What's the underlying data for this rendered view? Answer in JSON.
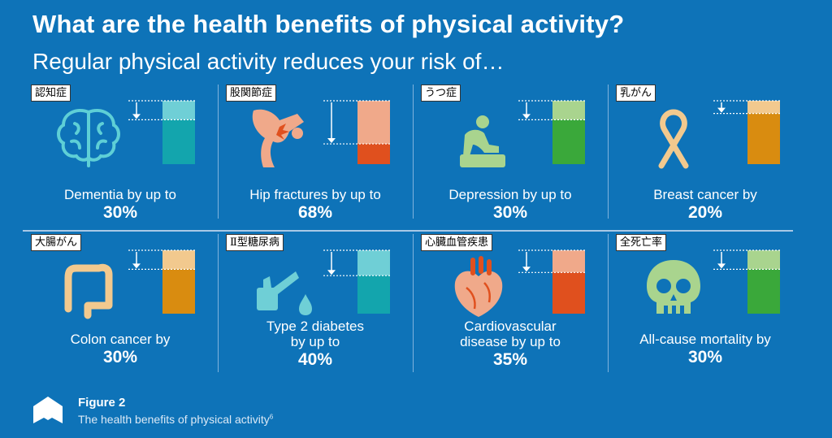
{
  "header": {
    "title": "What are the health benefits of physical activity?",
    "subtitle": "Regular physical activity reduces your risk of…"
  },
  "figure": {
    "label": "Figure 2",
    "caption": "The health benefits of physical activity",
    "reference": "6"
  },
  "colors": {
    "background": "#0e73b8",
    "dementia": [
      "#6fcfd6",
      "#13a5ad"
    ],
    "hip": [
      "#f0a98a",
      "#e0501e"
    ],
    "depression": [
      "#a9d48e",
      "#3aa83a"
    ],
    "breast": [
      "#f2c98e",
      "#d98c10"
    ],
    "colon": [
      "#f2c98e",
      "#d98c10"
    ],
    "diabetes": [
      "#6fcfd6",
      "#13a5ad"
    ],
    "cardio": [
      "#f0a98a",
      "#e0501e"
    ],
    "mortality": [
      "#a9d48e",
      "#3aa83a"
    ]
  },
  "chart_data": {
    "type": "bar",
    "categories": [
      "Dementia",
      "Hip fractures",
      "Depression",
      "Breast cancer",
      "Colon cancer",
      "Type 2 diabetes",
      "Cardiovascular disease",
      "All-cause mortality"
    ],
    "values": [
      30,
      68,
      30,
      20,
      30,
      40,
      35,
      30
    ],
    "unit": "%"
  },
  "cells": [
    {
      "id": "dementia",
      "jp": "認知症",
      "icon": "brain-icon",
      "caption_lines": [
        "Dementia by up to"
      ],
      "percent": "30%"
    },
    {
      "id": "hip",
      "jp": "股関節症",
      "icon": "hip-joint-icon",
      "caption_lines": [
        "Hip fractures by up to"
      ],
      "percent": "68%"
    },
    {
      "id": "depression",
      "jp": "うつ症",
      "icon": "sitting-person-icon",
      "caption_lines": [
        "Depression by up to"
      ],
      "percent": "30%"
    },
    {
      "id": "breast",
      "jp": "乳がん",
      "icon": "ribbon-icon",
      "caption_lines": [
        "Breast cancer by"
      ],
      "percent": "20%"
    },
    {
      "id": "colon",
      "jp": "大腸がん",
      "icon": "colon-icon",
      "caption_lines": [
        "Colon cancer by"
      ],
      "percent": "30%"
    },
    {
      "id": "diabetes",
      "jp": "Ⅱ型糖尿病",
      "icon": "glucose-test-icon",
      "caption_lines": [
        "Type 2 diabetes",
        "by up to"
      ],
      "percent": "40%"
    },
    {
      "id": "cardio",
      "jp": "心臓血管疾患",
      "icon": "heart-icon",
      "caption_lines": [
        "Cardiovascular",
        "disease by up to"
      ],
      "percent": "35%"
    },
    {
      "id": "mortality",
      "jp": "全死亡率",
      "icon": "skull-icon",
      "caption_lines": [
        "All-cause mortality by"
      ],
      "percent": "30%"
    }
  ]
}
